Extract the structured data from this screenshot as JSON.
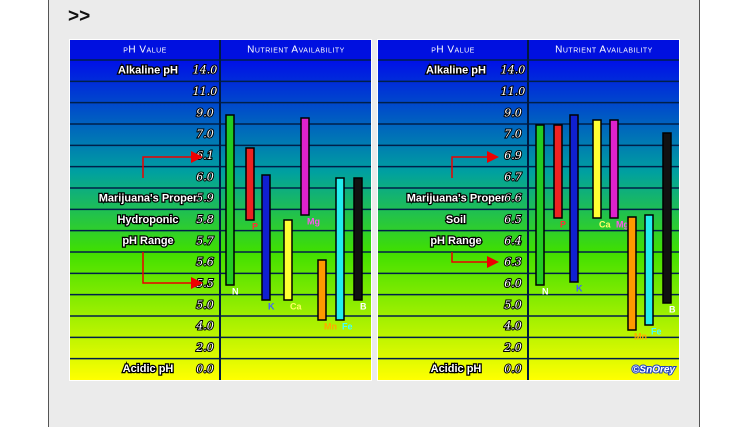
{
  "post": {
    "marker": ">>"
  },
  "charts": [
    {
      "header_left": "pH Value",
      "header_right": "Nutrient Availability",
      "rows": [
        {
          "label": "Alkaline pH",
          "value": "14.0"
        },
        {
          "label": null,
          "value": "11.0"
        },
        {
          "label": null,
          "value": "9.0"
        },
        {
          "label": null,
          "value": "7.0"
        },
        {
          "label": null,
          "value": "6.1"
        },
        {
          "label": null,
          "value": "6.0"
        },
        {
          "label": "Marijuana's Proper",
          "value": "5.9"
        },
        {
          "label": "Hydroponic",
          "value": "5.8"
        },
        {
          "label": "pH Range",
          "value": "5.7"
        },
        {
          "label": null,
          "value": "5.6"
        },
        {
          "label": null,
          "value": "5.5"
        },
        {
          "label": null,
          "value": "5.0"
        },
        {
          "label": null,
          "value": "4.0"
        },
        {
          "label": null,
          "value": "2.0"
        },
        {
          "label": "Acidic pH",
          "value": "0.0"
        }
      ],
      "nutrients": [
        "N",
        "P",
        "K",
        "Ca",
        "Mg",
        "Mn",
        "Fe",
        "B"
      ]
    },
    {
      "header_left": "pH Value",
      "header_right": "Nutrient Availability",
      "rows": [
        {
          "label": "Alkaline pH",
          "value": "14.0"
        },
        {
          "label": null,
          "value": "11.0"
        },
        {
          "label": null,
          "value": "9.0"
        },
        {
          "label": null,
          "value": "7.0"
        },
        {
          "label": null,
          "value": "6.9"
        },
        {
          "label": null,
          "value": "6.7"
        },
        {
          "label": "Marijuana's Proper",
          "value": "6.6"
        },
        {
          "label": "Soil",
          "value": "6.5"
        },
        {
          "label": "pH Range",
          "value": "6.4"
        },
        {
          "label": null,
          "value": "6.3"
        },
        {
          "label": null,
          "value": "6.0"
        },
        {
          "label": null,
          "value": "5.0"
        },
        {
          "label": null,
          "value": "4.0"
        },
        {
          "label": null,
          "value": "2.0"
        },
        {
          "label": "Acidic pH",
          "value": "0.0"
        }
      ],
      "nutrients": [
        "N",
        "P",
        "K",
        "Ca",
        "Mg",
        "Mn",
        "Fe",
        "B"
      ],
      "credit": "©SnOrey"
    }
  ]
}
